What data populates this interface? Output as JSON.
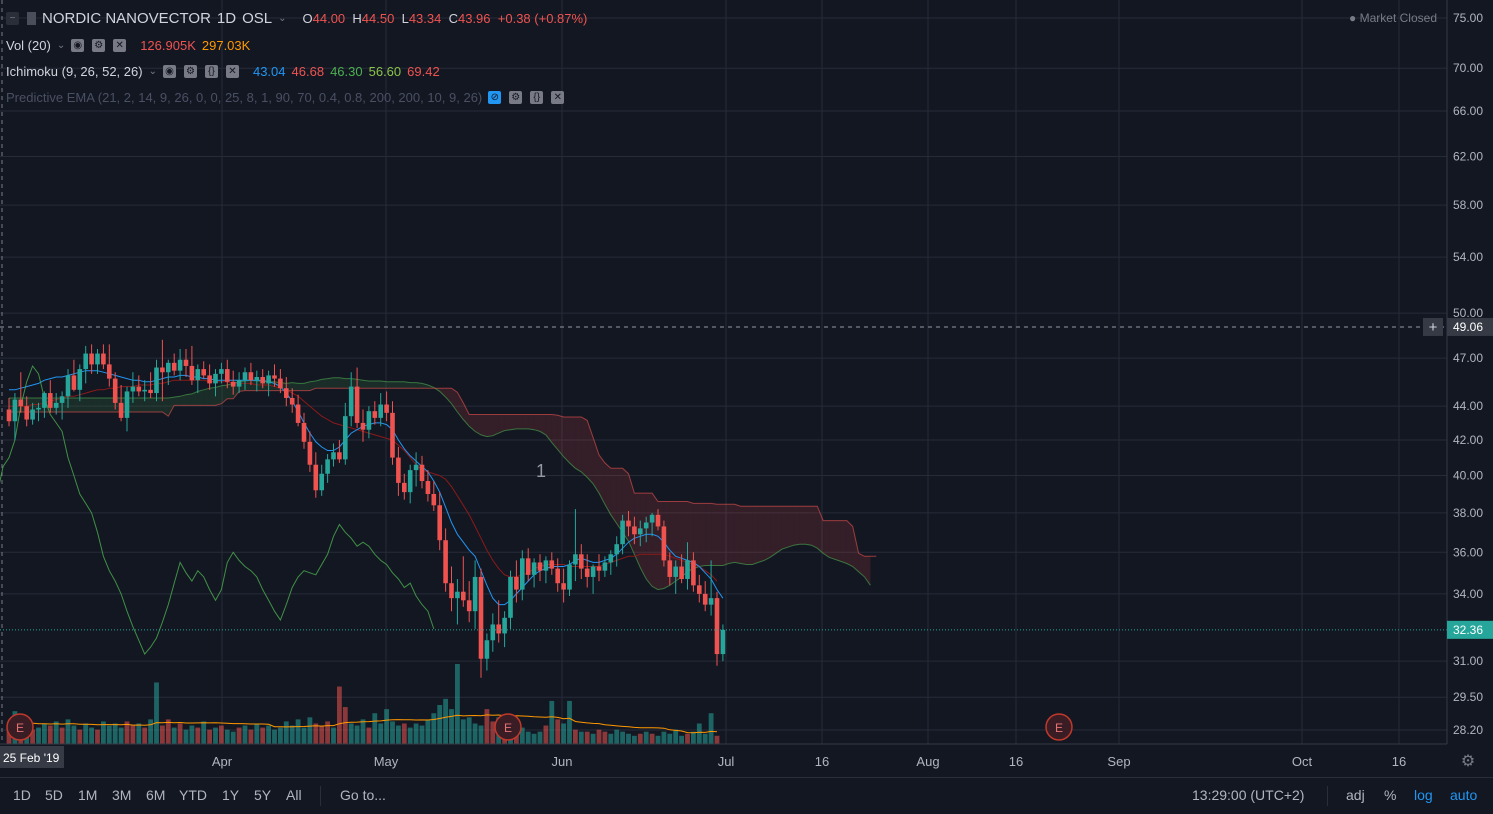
{
  "header": {
    "symbol": "NORDIC NANOVECTOR",
    "interval": "1D",
    "exchange": "OSL",
    "open_label": "O",
    "open": "44.00",
    "high_label": "H",
    "high": "44.50",
    "low_label": "L",
    "low": "43.34",
    "close_label": "C",
    "close": "43.96",
    "change": "+0.38 (+0.87%)",
    "market_status": "Market Closed"
  },
  "indicators": {
    "vol": {
      "label": "Vol (20)",
      "v1": "126.905K",
      "v2": "297.03K"
    },
    "ichimoku": {
      "label": "Ichimoku (9, 26, 52, 26)",
      "values": [
        "43.04",
        "46.68",
        "46.30",
        "56.60",
        "69.42"
      ]
    },
    "pema": {
      "label": "Predictive EMA (21, 2, 14, 9, 26, 0, 0, 25, 8, 1, 90, 70, 0.4, 0.8, 200, 200, 10, 9, 26)"
    }
  },
  "colors": {
    "up": "#26a69a",
    "down": "#ef5350",
    "tenkan": "#2196f3",
    "kijun": "#8b1a1a",
    "chikou": "#4caf50",
    "cloud_red": "#ef5350",
    "cloud_green": "#4caf50",
    "volume_ma": "#ff9800",
    "background": "#131722",
    "grid": "#262b38"
  },
  "bottom": {
    "timeframes": [
      "1D",
      "5D",
      "1M",
      "3M",
      "6M",
      "YTD",
      "1Y",
      "5Y",
      "All"
    ],
    "goto": "Go to...",
    "clock": "13:29:00 (UTC+2)",
    "adj": "adj",
    "pct": "%",
    "log": "log",
    "auto": "auto"
  },
  "chart_data": {
    "type": "candlestick",
    "scale": "log",
    "ylim": [
      27.8,
      77
    ],
    "y_ticks": [
      "75.00",
      "70.00",
      "66.00",
      "62.00",
      "58.00",
      "54.00",
      "50.00",
      "47.00",
      "44.00",
      "42.00",
      "40.00",
      "38.00",
      "36.00",
      "34.00",
      "31.00",
      "29.50",
      "28.20"
    ],
    "x_ticks": [
      "Apr",
      "May",
      "Jun",
      "Jul",
      "16",
      "Aug",
      "16",
      "Sep",
      "Oct",
      "16"
    ],
    "x_start_label": "25 Feb '19",
    "crosshair_price": "49.06",
    "last_price": "32.36",
    "annotation": "1",
    "earnings_marker": "E",
    "candles": [
      [
        43.8,
        44.5,
        42.8,
        43.1
      ],
      [
        43.1,
        44.8,
        42.0,
        44.4
      ],
      [
        44.4,
        46.1,
        43.6,
        44.0
      ],
      [
        44.0,
        44.6,
        42.8,
        43.2
      ],
      [
        43.2,
        44.2,
        42.9,
        43.8
      ],
      [
        43.8,
        44.2,
        43.1,
        43.9
      ],
      [
        43.9,
        44.9,
        43.3,
        44.8
      ],
      [
        44.8,
        45.6,
        43.6,
        43.9
      ],
      [
        43.9,
        44.8,
        43.5,
        44.2
      ],
      [
        44.2,
        44.9,
        43.2,
        44.6
      ],
      [
        44.6,
        46.3,
        43.9,
        45.9
      ],
      [
        45.9,
        46.9,
        44.9,
        45.0
      ],
      [
        45.0,
        46.6,
        44.3,
        46.3
      ],
      [
        46.3,
        47.8,
        45.4,
        47.3
      ],
      [
        47.3,
        47.9,
        46.0,
        46.6
      ],
      [
        46.6,
        47.6,
        46.0,
        47.3
      ],
      [
        47.3,
        47.9,
        46.3,
        46.6
      ],
      [
        46.6,
        47.9,
        45.2,
        45.7
      ],
      [
        45.7,
        46.1,
        43.8,
        44.2
      ],
      [
        44.2,
        45.3,
        43.1,
        43.3
      ],
      [
        43.3,
        45.2,
        42.5,
        44.9
      ],
      [
        44.9,
        46.1,
        44.2,
        45.2
      ],
      [
        45.2,
        45.9,
        44.6,
        44.9
      ],
      [
        44.9,
        45.6,
        44.3,
        45.0
      ],
      [
        45.0,
        46.1,
        44.5,
        44.8
      ],
      [
        44.8,
        46.9,
        44.3,
        46.4
      ],
      [
        46.4,
        48.2,
        44.3,
        46.1
      ],
      [
        46.1,
        46.9,
        45.3,
        46.7
      ],
      [
        46.7,
        47.3,
        45.9,
        46.2
      ],
      [
        46.2,
        47.6,
        45.6,
        46.9
      ],
      [
        46.9,
        47.6,
        45.8,
        46.5
      ],
      [
        46.5,
        47.8,
        45.3,
        45.6
      ],
      [
        45.6,
        46.6,
        44.8,
        46.3
      ],
      [
        46.3,
        46.8,
        45.7,
        45.9
      ],
      [
        45.9,
        46.6,
        45.0,
        45.4
      ],
      [
        45.4,
        46.3,
        44.6,
        46.0
      ],
      [
        46.0,
        46.7,
        45.4,
        46.3
      ],
      [
        46.3,
        46.9,
        45.1,
        45.5
      ],
      [
        45.5,
        46.2,
        44.7,
        45.2
      ],
      [
        45.2,
        46.1,
        44.8,
        45.6
      ],
      [
        45.6,
        46.4,
        45.0,
        46.1
      ],
      [
        46.1,
        46.7,
        45.3,
        45.6
      ],
      [
        45.6,
        46.2,
        44.9,
        45.8
      ],
      [
        45.8,
        46.3,
        45.1,
        45.4
      ],
      [
        45.4,
        46.2,
        44.6,
        45.9
      ],
      [
        45.9,
        46.6,
        45.2,
        45.7
      ],
      [
        45.7,
        46.3,
        44.8,
        45.1
      ],
      [
        45.1,
        45.8,
        44.0,
        44.5
      ],
      [
        44.5,
        45.1,
        43.6,
        44.1
      ],
      [
        44.1,
        44.7,
        42.8,
        43.0
      ],
      [
        43.0,
        43.6,
        41.5,
        41.9
      ],
      [
        41.9,
        42.5,
        40.2,
        40.6
      ],
      [
        40.6,
        41.3,
        38.8,
        39.2
      ],
      [
        39.2,
        40.6,
        38.9,
        40.1
      ],
      [
        40.1,
        41.2,
        39.6,
        40.9
      ],
      [
        40.9,
        41.8,
        40.5,
        41.3
      ],
      [
        41.3,
        42.0,
        40.7,
        40.9
      ],
      [
        40.9,
        44.2,
        40.6,
        43.4
      ],
      [
        43.4,
        46.1,
        42.8,
        45.2
      ],
      [
        45.2,
        46.4,
        42.7,
        43.0
      ],
      [
        43.0,
        43.8,
        41.9,
        42.6
      ],
      [
        42.6,
        44.0,
        42.1,
        43.7
      ],
      [
        43.7,
        44.3,
        42.9,
        43.3
      ],
      [
        43.3,
        44.8,
        42.8,
        44.1
      ],
      [
        44.1,
        44.9,
        43.1,
        43.6
      ],
      [
        43.6,
        44.3,
        40.6,
        41.0
      ],
      [
        41.0,
        41.6,
        38.9,
        39.6
      ],
      [
        39.6,
        40.1,
        38.7,
        39.1
      ],
      [
        39.1,
        40.6,
        38.5,
        40.3
      ],
      [
        40.3,
        41.3,
        39.4,
        40.6
      ],
      [
        40.6,
        41.1,
        39.3,
        39.7
      ],
      [
        39.7,
        40.3,
        38.6,
        39.0
      ],
      [
        39.0,
        39.7,
        38.1,
        38.4
      ],
      [
        38.4,
        39.1,
        36.1,
        36.6
      ],
      [
        36.6,
        37.2,
        34.1,
        34.5
      ],
      [
        34.5,
        35.3,
        33.2,
        33.8
      ],
      [
        33.8,
        34.7,
        32.6,
        34.1
      ],
      [
        34.1,
        35.8,
        33.4,
        33.7
      ],
      [
        33.7,
        34.6,
        32.7,
        33.2
      ],
      [
        33.2,
        35.6,
        32.4,
        34.8
      ],
      [
        34.8,
        35.2,
        30.3,
        31.1
      ],
      [
        31.1,
        32.2,
        30.6,
        31.9
      ],
      [
        31.9,
        33.1,
        31.4,
        32.6
      ],
      [
        32.6,
        33.7,
        31.8,
        32.2
      ],
      [
        32.2,
        33.2,
        31.6,
        32.9
      ],
      [
        32.9,
        35.1,
        32.4,
        34.8
      ],
      [
        34.8,
        35.6,
        33.6,
        34.2
      ],
      [
        34.2,
        36.1,
        33.7,
        35.7
      ],
      [
        35.7,
        36.2,
        34.6,
        34.9
      ],
      [
        34.9,
        35.7,
        34.3,
        35.5
      ],
      [
        35.5,
        35.9,
        34.6,
        35.1
      ],
      [
        35.1,
        35.8,
        34.5,
        35.6
      ],
      [
        35.6,
        36.0,
        34.9,
        35.2
      ],
      [
        35.2,
        35.7,
        34.1,
        34.5
      ],
      [
        34.5,
        35.2,
        33.6,
        34.2
      ],
      [
        34.2,
        35.6,
        33.9,
        35.4
      ],
      [
        35.4,
        38.2,
        34.6,
        35.9
      ],
      [
        35.9,
        36.4,
        34.7,
        35.2
      ],
      [
        35.2,
        35.9,
        34.3,
        34.8
      ],
      [
        34.8,
        35.4,
        34.0,
        35.3
      ],
      [
        35.3,
        35.9,
        34.6,
        35.1
      ],
      [
        35.1,
        35.8,
        34.8,
        35.5
      ],
      [
        35.5,
        36.1,
        34.9,
        35.9
      ],
      [
        35.9,
        36.8,
        35.3,
        36.4
      ],
      [
        36.4,
        37.9,
        35.9,
        37.6
      ],
      [
        37.6,
        38.1,
        36.8,
        37.3
      ],
      [
        37.3,
        37.8,
        36.4,
        36.9
      ],
      [
        36.9,
        37.6,
        36.3,
        37.2
      ],
      [
        37.2,
        37.8,
        36.5,
        37.5
      ],
      [
        37.5,
        38.0,
        36.8,
        37.9
      ],
      [
        37.9,
        38.2,
        37.1,
        37.3
      ],
      [
        37.3,
        37.6,
        35.3,
        35.6
      ],
      [
        35.6,
        36.0,
        34.4,
        34.8
      ],
      [
        34.8,
        35.6,
        34.0,
        35.3
      ],
      [
        35.3,
        35.9,
        34.5,
        34.7
      ],
      [
        34.7,
        36.5,
        34.2,
        35.6
      ],
      [
        35.6,
        36.0,
        34.1,
        34.4
      ],
      [
        34.4,
        34.9,
        33.6,
        34.0
      ],
      [
        34.0,
        34.6,
        33.2,
        33.5
      ],
      [
        33.5,
        35.6,
        33.0,
        33.8
      ],
      [
        33.8,
        34.1,
        30.8,
        31.3
      ],
      [
        31.3,
        32.6,
        31.0,
        32.36
      ]
    ],
    "volume": [
      [
        0.8,
        0
      ],
      [
        1.6,
        1
      ],
      [
        0.9,
        0
      ],
      [
        1.1,
        1
      ],
      [
        0.7,
        0
      ],
      [
        0.8,
        1
      ],
      [
        1.0,
        1
      ],
      [
        0.9,
        0
      ],
      [
        1.1,
        1
      ],
      [
        0.8,
        0
      ],
      [
        1.2,
        1
      ],
      [
        0.9,
        1
      ],
      [
        0.7,
        0
      ],
      [
        1.0,
        1
      ],
      [
        0.8,
        1
      ],
      [
        0.7,
        0
      ],
      [
        1.1,
        1
      ],
      [
        0.9,
        1
      ],
      [
        1.0,
        1
      ],
      [
        0.8,
        1
      ],
      [
        1.1,
        0
      ],
      [
        0.9,
        0
      ],
      [
        1.0,
        1
      ],
      [
        0.8,
        0
      ],
      [
        1.2,
        1
      ],
      [
        3.0,
        1
      ],
      [
        0.9,
        0
      ],
      [
        1.2,
        0
      ],
      [
        0.8,
        1
      ],
      [
        1.0,
        0
      ],
      [
        0.7,
        1
      ],
      [
        0.9,
        1
      ],
      [
        0.8,
        0
      ],
      [
        1.1,
        1
      ],
      [
        0.7,
        0
      ],
      [
        0.8,
        1
      ],
      [
        0.9,
        0
      ],
      [
        0.7,
        1
      ],
      [
        0.6,
        1
      ],
      [
        0.8,
        0
      ],
      [
        0.9,
        1
      ],
      [
        0.7,
        0
      ],
      [
        1.0,
        1
      ],
      [
        0.8,
        0
      ],
      [
        0.9,
        1
      ],
      [
        0.7,
        1
      ],
      [
        0.8,
        1
      ],
      [
        1.1,
        1
      ],
      [
        0.9,
        1
      ],
      [
        1.2,
        1
      ],
      [
        0.8,
        1
      ],
      [
        1.3,
        1
      ],
      [
        1.0,
        0
      ],
      [
        0.9,
        0
      ],
      [
        1.1,
        0
      ],
      [
        0.8,
        1
      ],
      [
        2.8,
        0
      ],
      [
        1.8,
        0
      ],
      [
        1.0,
        1
      ],
      [
        0.9,
        1
      ],
      [
        1.2,
        1
      ],
      [
        0.8,
        0
      ],
      [
        1.5,
        1
      ],
      [
        1.0,
        1
      ],
      [
        1.7,
        1
      ],
      [
        1.1,
        1
      ],
      [
        0.9,
        1
      ],
      [
        1.0,
        0
      ],
      [
        0.8,
        1
      ],
      [
        1.0,
        1
      ],
      [
        0.9,
        1
      ],
      [
        1.2,
        1
      ],
      [
        1.5,
        1
      ],
      [
        1.9,
        1
      ],
      [
        2.2,
        1
      ],
      [
        1.7,
        1
      ],
      [
        3.9,
        1
      ],
      [
        1.2,
        1
      ],
      [
        1.3,
        1
      ],
      [
        1.0,
        1
      ],
      [
        0.9,
        1
      ],
      [
        1.7,
        0
      ],
      [
        1.1,
        0
      ],
      [
        1.3,
        1
      ],
      [
        1.0,
        0
      ],
      [
        0.9,
        1
      ],
      [
        1.0,
        0
      ],
      [
        0.8,
        1
      ],
      [
        0.6,
        1
      ],
      [
        0.5,
        1
      ],
      [
        0.6,
        1
      ],
      [
        0.9,
        0
      ],
      [
        2.1,
        1
      ],
      [
        1.2,
        0
      ],
      [
        1.0,
        1
      ],
      [
        2.1,
        1
      ],
      [
        0.7,
        0
      ],
      [
        0.6,
        1
      ],
      [
        0.6,
        0
      ],
      [
        0.5,
        1
      ],
      [
        0.7,
        0
      ],
      [
        0.6,
        0
      ],
      [
        0.5,
        1
      ],
      [
        0.7,
        1
      ],
      [
        0.6,
        1
      ],
      [
        0.5,
        1
      ],
      [
        0.4,
        1
      ],
      [
        0.5,
        0
      ],
      [
        0.6,
        1
      ],
      [
        0.5,
        0
      ],
      [
        0.4,
        1
      ],
      [
        0.6,
        1
      ],
      [
        0.5,
        1
      ],
      [
        0.7,
        1
      ],
      [
        0.4,
        1
      ],
      [
        0.5,
        0
      ],
      [
        0.6,
        1
      ],
      [
        1.0,
        1
      ],
      [
        0.5,
        1
      ],
      [
        1.5,
        1
      ],
      [
        0.4,
        0
      ]
    ],
    "tenkan_sen": [
      45,
      45,
      45.1,
      45.2,
      45.3,
      45.4,
      45.6,
      45.7,
      45.8,
      45.8,
      45.9,
      46,
      46.1,
      46.2,
      46.2,
      46.2,
      46.1,
      46,
      45.9,
      45.8,
      45.7,
      45.6,
      45.6,
      45.5,
      45.5,
      45.6,
      45.7,
      45.8,
      45.8,
      45.9,
      45.9,
      45.8,
      45.8,
      45.7,
      45.7,
      45.6,
      45.6,
      45.6,
      45.6,
      45.6,
      45.6,
      45.6,
      45.6,
      45.6,
      45.5,
      45.4,
      45.2,
      44.8,
      44.3,
      43.7,
      43,
      42.4,
      41.9,
      41.6,
      41.4,
      41.4,
      41.6,
      42,
      42.4,
      42.6,
      42.8,
      42.9,
      43,
      43,
      42.9,
      42.6,
      42,
      41.5,
      41.1,
      40.8,
      40.5,
      40.2,
      39.7,
      39.1,
      38.3,
      37.5,
      36.9,
      36.5,
      36.1,
      35.8,
      35.1,
      34.4,
      33.8,
      33.5,
      33.5,
      33.7,
      34,
      34.3,
      34.6,
      34.9,
      35.1,
      35.2,
      35.3,
      35.3,
      35.3,
      35.4,
      35.6,
      35.7,
      35.6,
      35.5,
      35.5,
      35.6,
      35.7,
      35.9,
      36.2,
      36.5,
      36.7,
      36.8,
      36.9,
      36.9,
      36.8,
      36.5,
      36.1,
      35.8,
      35.7,
      35.6,
      35.5,
      35.3,
      35,
      34.7,
      34.2,
      33.8
    ],
    "kijun_sen": [
      44,
      44,
      44,
      44,
      44.1,
      44.1,
      44.2,
      44.3,
      44.4,
      44.5,
      44.6,
      44.6,
      44.7,
      44.8,
      44.9,
      45,
      45,
      45.1,
      45.1,
      45.2,
      45.2,
      45.2,
      45.3,
      45.3,
      45.3,
      45.4,
      45.4,
      45.5,
      45.6,
      45.6,
      45.6,
      45.6,
      45.6,
      45.6,
      45.5,
      45.5,
      45.5,
      45.5,
      45.4,
      45.4,
      45.4,
      45.4,
      45.3,
      45.3,
      45.3,
      45.2,
      45.1,
      45,
      44.8,
      44.6,
      44.3,
      44,
      43.7,
      43.4,
      43.2,
      43,
      42.9,
      42.8,
      42.7,
      42.6,
      42.5,
      42.4,
      42.3,
      42.2,
      42.1,
      42,
      41.7,
      41.4,
      41,
      40.6,
      40.3,
      40.2,
      40.1,
      40,
      39.8,
      39.4,
      38.9,
      38.4,
      37.9,
      37.3,
      36.7,
      36.1,
      35.6,
      35.2,
      34.9,
      34.8,
      34.8,
      34.9,
      35,
      35.2,
      35.3,
      35.4,
      35.4,
      35.4,
      35.4,
      35.3,
      35.3,
      35.3,
      35.3,
      35.3,
      35.3,
      35.4,
      35.5,
      35.6,
      35.7,
      35.8,
      35.8,
      35.9,
      35.9,
      35.9,
      35.9,
      35.9,
      35.8,
      35.7,
      35.6,
      35.5,
      35.4,
      35.3,
      35.1,
      34.9,
      34.6
    ],
    "chikou_span": [
      46,
      47,
      46,
      45.5,
      44,
      43.8,
      43.5,
      44,
      44.2,
      43.8,
      44.5,
      45,
      45.6,
      46.2,
      46.5,
      46.2,
      45.8,
      45.5,
      44.8,
      43.2,
      41.5,
      40,
      39,
      40.5,
      41,
      42,
      44,
      45.5,
      46.5,
      46,
      44.5,
      43.5,
      43,
      42.5,
      41,
      40,
      39,
      38.5,
      38,
      37,
      35.8,
      35.1,
      34.6,
      34,
      33.2,
      32.5,
      31.9,
      31.3,
      31.6,
      32,
      32.7,
      33.5,
      34.5,
      35.5,
      35,
      34.6,
      35.1,
      34.8,
      34.2,
      33.7,
      34.2,
      35.5,
      36,
      35.6,
      35.3,
      35.1,
      34.8,
      34.2,
      33.7,
      33.2,
      32.8,
      33.5,
      34.3,
      34.8,
      35.1,
      35,
      34.9,
      35.4,
      35.9,
      36.8,
      37.4,
      37,
      36.7,
      36.3,
      36.5,
      36.3,
      35.9,
      35.6,
      35.4,
      35,
      34.7,
      34.3,
      34.5,
      33.9,
      33.5,
      33.2,
      32.4
    ]
  }
}
